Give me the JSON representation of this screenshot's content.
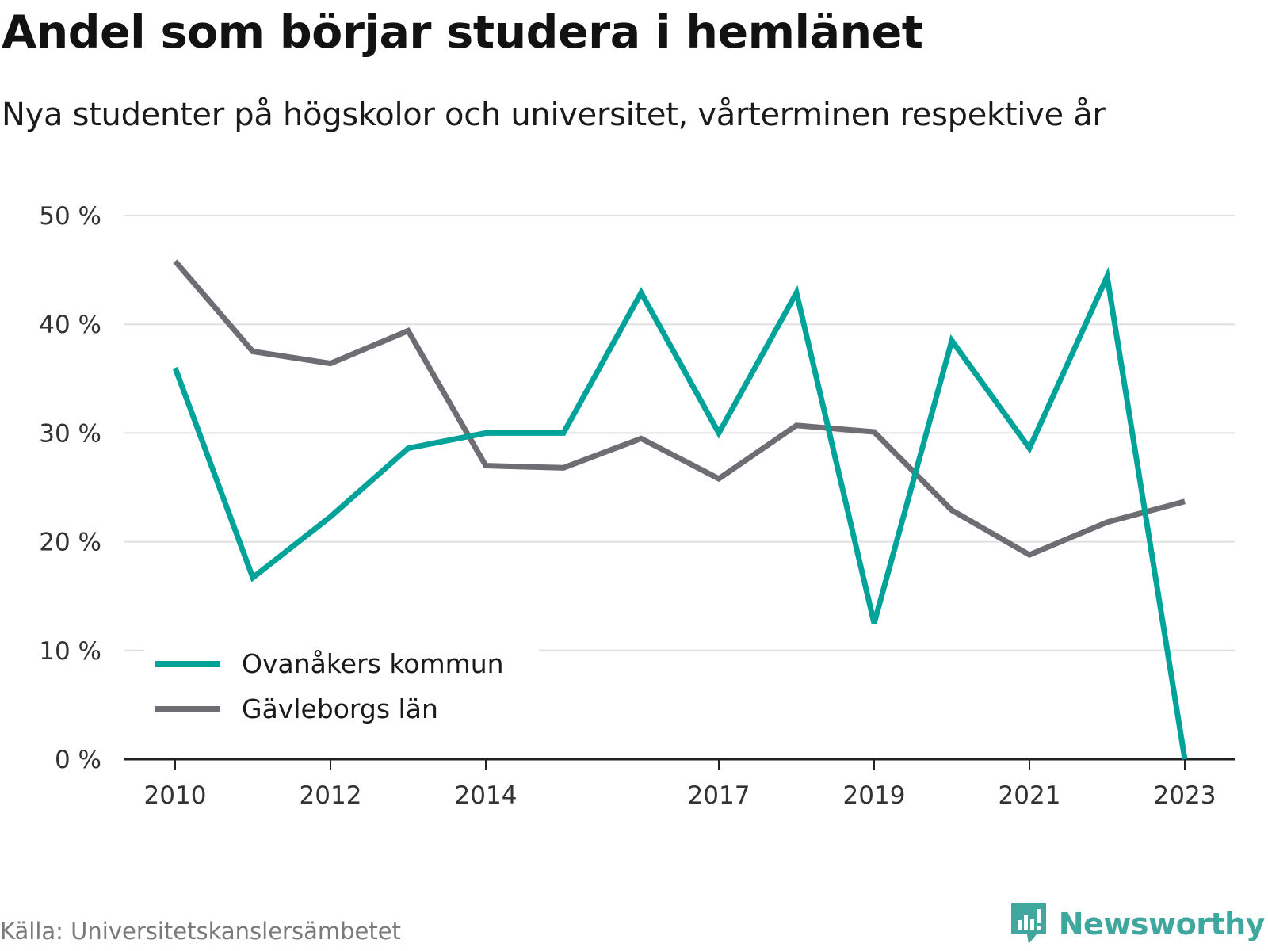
{
  "title": "Andel som börjar studera i hemlänet",
  "subtitle": "Nya studenter på högskolor och universitet, vårterminen respektive år",
  "source": "Källa: Universitetskanslersämbetet",
  "brand": "Newsworthy",
  "colors": {
    "accent": "#00a39a",
    "secondary": "#6e6d74",
    "grid": "#e0e0e0",
    "brand": "#3fa79e"
  },
  "chart_data": {
    "type": "line",
    "ylim": [
      0,
      50
    ],
    "xlim": [
      2010,
      2023
    ],
    "yticks": [
      0,
      10,
      20,
      30,
      40,
      50
    ],
    "ytick_labels": [
      "0 %",
      "10 %",
      "20 %",
      "30 %",
      "40 %",
      "50 %"
    ],
    "xticks": [
      2010,
      2012,
      2014,
      2017,
      2019,
      2021,
      2023
    ],
    "xtick_labels": [
      "2010",
      "2012",
      "2014",
      "2017",
      "2019",
      "2021",
      "2023"
    ],
    "grid": true,
    "legend_position": "bottom-left",
    "x": [
      2010,
      2011,
      2012,
      2013,
      2014,
      2015,
      2016,
      2017,
      2018,
      2019,
      2020,
      2021,
      2022,
      2023
    ],
    "series": [
      {
        "name": "Ovanåkers kommun",
        "color": "#00a39a",
        "values": [
          36,
          16.7,
          22.3,
          28.6,
          30,
          30,
          42.9,
          30,
          42.9,
          12.5,
          38.5,
          28.6,
          44.4,
          0
        ]
      },
      {
        "name": "Gävleborgs län",
        "color": "#6e6d74",
        "values": [
          45.8,
          37.5,
          36.4,
          39.4,
          27,
          26.8,
          29.5,
          25.8,
          30.7,
          30.1,
          22.9,
          18.8,
          21.8,
          23.7
        ]
      }
    ]
  }
}
